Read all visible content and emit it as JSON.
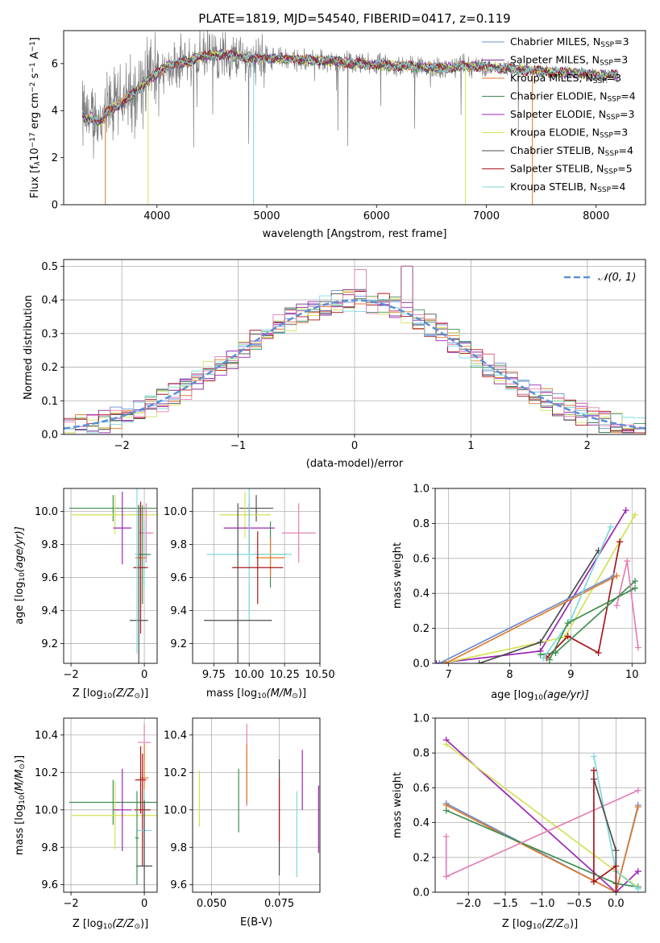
{
  "colors": {
    "miles": {
      "Chabrier": "#6a8fd6",
      "Salpeter": "#7e2f8e",
      "Kroupa": "#e07a2a"
    },
    "elodie": {
      "Chabrier": "#3f8f52",
      "Salpeter": "#9b26b6",
      "Kroupa": "#d4e157"
    },
    "stelib": {
      "Chabrier": "#4d4d4d",
      "Salpeter": "#a8171b",
      "Kroupa": "#7fd9dd"
    },
    "pink": "#e57fb4",
    "grid": "#b0b0b0"
  },
  "chart_data": [
    {
      "type": "line",
      "title": "PLATE=1819, MJD=54540, FIBERID=0417, z=0.119",
      "xlabel": "wavelength [Angstrom, rest frame]",
      "ylabel_parts": [
        "Flux [f",
        "λ",
        "10",
        "−17",
        " erg cm",
        "−2",
        " s",
        "−1",
        " A",
        "−1",
        "]"
      ],
      "xlim": [
        3150,
        8450
      ],
      "ylim": [
        0,
        7.4
      ],
      "xticks": [
        4000,
        5000,
        6000,
        7000,
        8000
      ],
      "yticks": [
        0,
        2,
        4,
        6
      ],
      "legend_position": "top-right",
      "legend": [
        {
          "label": "Chabrier MILES, N",
          "sub": "SSP",
          "suffix": "=3",
          "color": "#6a8fd6"
        },
        {
          "label": "Salpeter MILES, N",
          "sub": "SSP",
          "suffix": "=3",
          "color": "#7e2f8e"
        },
        {
          "label": "Kroupa MILES, N",
          "sub": "SSP",
          "suffix": "=3",
          "color": "#e07a2a"
        },
        {
          "label": "Chabrier ELODIE, N",
          "sub": "SSP",
          "suffix": "=4",
          "color": "#3f8f52"
        },
        {
          "label": "Salpeter ELODIE, N",
          "sub": "SSP",
          "suffix": "=3",
          "color": "#9b26b6"
        },
        {
          "label": "Kroupa ELODIE, N",
          "sub": "SSP",
          "suffix": "=3",
          "color": "#d4e157"
        },
        {
          "label": "Chabrier STELIB, N",
          "sub": "SSP",
          "suffix": "=4",
          "color": "#4d4d4d"
        },
        {
          "label": "Salpeter STELIB, N",
          "sub": "SSP",
          "suffix": "=5",
          "color": "#a8171b"
        },
        {
          "label": "Kroupa STELIB, N",
          "sub": "SSP",
          "suffix": "=4",
          "color": "#7fd9dd"
        }
      ],
      "continuum": [
        [
          3320,
          3.8
        ],
        [
          3360,
          3.6
        ],
        [
          3400,
          3.7
        ],
        [
          3450,
          3.6
        ],
        [
          3500,
          3.55
        ],
        [
          3550,
          4.0
        ],
        [
          3600,
          4.1
        ],
        [
          3700,
          4.4
        ],
        [
          3800,
          4.8
        ],
        [
          3900,
          5.2
        ],
        [
          4000,
          5.6
        ],
        [
          4100,
          5.9
        ],
        [
          4200,
          6.0
        ],
        [
          4300,
          6.1
        ],
        [
          4400,
          6.3
        ],
        [
          4500,
          6.35
        ],
        [
          4600,
          6.4
        ],
        [
          4700,
          6.3
        ],
        [
          4800,
          6.3
        ],
        [
          4900,
          6.2
        ],
        [
          5000,
          6.25
        ],
        [
          5200,
          6.2
        ],
        [
          5400,
          6.15
        ],
        [
          5600,
          6.1
        ],
        [
          5800,
          6.0
        ],
        [
          6000,
          5.95
        ],
        [
          6200,
          5.9
        ],
        [
          6400,
          5.85
        ],
        [
          6600,
          5.8
        ],
        [
          6800,
          5.9
        ],
        [
          7000,
          5.85
        ],
        [
          7200,
          5.8
        ],
        [
          7400,
          5.7
        ],
        [
          7600,
          5.65
        ],
        [
          7800,
          5.6
        ],
        [
          8000,
          5.5
        ],
        [
          8200,
          5.5
        ]
      ]
    },
    {
      "type": "bar",
      "xlabel": "(data-model)/error",
      "ylabel": "Normed distribution",
      "xlim": [
        -2.5,
        2.5
      ],
      "ylim": [
        0,
        0.52
      ],
      "xticks": [
        -2,
        -1,
        0,
        1,
        2
      ],
      "yticks": [
        0.0,
        0.1,
        0.2,
        0.3,
        0.4,
        0.5
      ],
      "legend_position": "top-right",
      "legend": [
        {
          "label": "𝒩(0, 1)",
          "color": "#5b8fd6"
        }
      ],
      "bin_width": 0.1
    },
    {
      "type": "scatter",
      "xlabel_parts": [
        "Z [log",
        "10",
        "(Z/Z",
        "⊙",
        ")]"
      ],
      "ylabel_parts": [
        "age  [log",
        "10",
        "(age/yr)]"
      ],
      "xlim": [
        -2.2,
        0.35
      ],
      "ylim": [
        9.08,
        10.14
      ],
      "xticks": [
        -2,
        0
      ],
      "yticks": [
        9.2,
        9.4,
        9.6,
        9.8,
        10.0
      ],
      "points": [
        {
          "x": -0.85,
          "y": 10.02,
          "xerr": 1.2,
          "yerr": 0.08,
          "color": "#3f8f52"
        },
        {
          "x": -0.8,
          "y": 9.98,
          "xerr": 1.2,
          "yerr": 0.12,
          "color": "#d4e157"
        },
        {
          "x": -0.6,
          "y": 9.9,
          "xerr": 0.25,
          "yerr": 0.22,
          "color": "#9b26b6"
        },
        {
          "x": 0.05,
          "y": 9.87,
          "xerr": 0.2,
          "yerr": 0.18,
          "color": "#e57fb4"
        },
        {
          "x": 0.0,
          "y": 9.74,
          "xerr": 0.2,
          "yerr": 0.2,
          "color": "#7fd9dd"
        },
        {
          "x": -0.05,
          "y": 9.74,
          "xerr": 0.2,
          "yerr": 0.3,
          "color": "#3f8f52"
        },
        {
          "x": -0.1,
          "y": 9.72,
          "xerr": 0.15,
          "yerr": 0.3,
          "color": "#e07a2a"
        },
        {
          "x": -0.1,
          "y": 9.66,
          "xerr": 0.2,
          "yerr": 0.4,
          "color": "#a8171b"
        },
        {
          "x": -0.15,
          "y": 9.34,
          "xerr": 0.25,
          "yerr": 0.7,
          "color": "#4d4d4d"
        },
        {
          "x": -0.2,
          "y": 9.74,
          "xerr": 0.05,
          "yerr": 0.6,
          "color": "#7fd9dd"
        }
      ]
    },
    {
      "type": "scatter",
      "xlabel_parts": [
        "mass [log",
        "10",
        "(M/M",
        "⊙",
        ")]"
      ],
      "ylabel": "",
      "xlim": [
        9.6,
        10.5
      ],
      "ylim": [
        9.08,
        10.14
      ],
      "xticks": [
        9.75,
        10.0,
        10.25,
        10.5
      ],
      "xticklabels": [
        "9.75",
        "10.00",
        "10.25",
        "10.50"
      ],
      "yticks": [
        9.2,
        9.4,
        9.6,
        9.8,
        10.0
      ],
      "points": [
        {
          "x": 10.05,
          "y": 10.02,
          "xerr": 0.12,
          "yerr": 0.08,
          "color": "#4d4d4d"
        },
        {
          "x": 9.97,
          "y": 9.98,
          "xerr": 0.18,
          "yerr": 0.14,
          "color": "#d4e157"
        },
        {
          "x": 10.0,
          "y": 9.9,
          "xerr": 0.18,
          "yerr": 0.15,
          "color": "#9b26b6"
        },
        {
          "x": 10.35,
          "y": 9.87,
          "xerr": 0.12,
          "yerr": 0.18,
          "color": "#e57fb4"
        },
        {
          "x": 10.15,
          "y": 9.74,
          "xerr": 0.12,
          "yerr": 0.2,
          "color": "#3f8f52"
        },
        {
          "x": 10.15,
          "y": 9.72,
          "xerr": 0.1,
          "yerr": 0.12,
          "color": "#e07a2a"
        },
        {
          "x": 10.0,
          "y": 9.74,
          "xerr": 0.3,
          "yerr": 0.4,
          "color": "#7fd9dd"
        },
        {
          "x": 10.06,
          "y": 9.66,
          "xerr": 0.18,
          "yerr": 0.22,
          "color": "#a8171b"
        },
        {
          "x": 9.92,
          "y": 9.34,
          "xerr": 0.24,
          "yerr": 0.71,
          "color": "#4d4d4d"
        }
      ]
    },
    {
      "type": "line",
      "xlabel_parts": [
        "age  [log",
        "10",
        "(age/yr)]"
      ],
      "ylabel": "mass weight",
      "xlim": [
        6.78,
        10.22
      ],
      "ylim": [
        0,
        1.0
      ],
      "xticks": [
        7,
        8,
        9,
        10
      ],
      "yticks": [
        0.0,
        0.2,
        0.4,
        0.6,
        0.8,
        1.0
      ],
      "series": [
        {
          "color": "#9b26b6",
          "points": [
            [
              6.8,
              0.0
            ],
            [
              8.5,
              0.07
            ],
            [
              9.9,
              0.875
            ]
          ]
        },
        {
          "color": "#d4e157",
          "points": [
            [
              6.9,
              0.0
            ],
            [
              8.9,
              0.15
            ],
            [
              10.05,
              0.85
            ]
          ]
        },
        {
          "color": "#4d4d4d",
          "points": [
            [
              7.5,
              0.0
            ],
            [
              8.5,
              0.12
            ],
            [
              9.45,
              0.645
            ]
          ]
        },
        {
          "color": "#a8171b",
          "points": [
            [
              8.6,
              0.03
            ],
            [
              8.95,
              0.155
            ],
            [
              9.45,
              0.06
            ],
            [
              9.8,
              0.695
            ]
          ]
        },
        {
          "color": "#6a8fd6",
          "points": [
            [
              6.85,
              0.0
            ],
            [
              9.7,
              0.5
            ]
          ]
        },
        {
          "color": "#e07a2a",
          "points": [
            [
              6.95,
              0.0
            ],
            [
              9.75,
              0.5
            ]
          ]
        },
        {
          "color": "#3f8f52",
          "points": [
            [
              8.5,
              0.05
            ],
            [
              8.75,
              0.06
            ],
            [
              10.05,
              0.47
            ]
          ]
        },
        {
          "color": "#7fd9dd",
          "points": [
            [
              8.55,
              0.03
            ],
            [
              9.0,
              0.25
            ],
            [
              9.65,
              0.78
            ]
          ]
        },
        {
          "color": "#e57fb4",
          "points": [
            [
              9.75,
              0.33
            ],
            [
              9.92,
              0.585
            ],
            [
              10.1,
              0.09
            ]
          ]
        },
        {
          "color": "#3f8f52",
          "points": [
            [
              8.65,
              0.02
            ],
            [
              8.95,
              0.23
            ],
            [
              10.05,
              0.43
            ]
          ]
        }
      ]
    },
    {
      "type": "scatter",
      "xlabel_parts": [
        "Z [log",
        "10",
        "(Z/Z",
        "⊙",
        ")]"
      ],
      "ylabel_parts": [
        "mass [log",
        "10",
        "(M/M",
        "⊙",
        ")]"
      ],
      "xlim": [
        -2.2,
        0.35
      ],
      "ylim": [
        9.56,
        10.49
      ],
      "xticks": [
        -2,
        0
      ],
      "yticks": [
        9.6,
        9.8,
        10.0,
        10.2,
        10.4
      ],
      "points": [
        {
          "x": -0.85,
          "y": 10.04,
          "xerr": 1.2,
          "yerr": 0.12,
          "color": "#3f8f52"
        },
        {
          "x": -0.8,
          "y": 9.97,
          "xerr": 1.2,
          "yerr": 0.18,
          "color": "#d4e157"
        },
        {
          "x": -0.6,
          "y": 10.0,
          "xerr": 0.25,
          "yerr": 0.22,
          "color": "#9b26b6"
        },
        {
          "x": 0.0,
          "y": 10.36,
          "xerr": 0.18,
          "yerr": 0.1,
          "color": "#e57fb4"
        },
        {
          "x": 0.0,
          "y": 10.17,
          "xerr": 0.12,
          "yerr": 0.18,
          "color": "#e07a2a"
        },
        {
          "x": -0.1,
          "y": 10.16,
          "xerr": 0.15,
          "yerr": 0.18,
          "color": "#a8171b"
        },
        {
          "x": -0.05,
          "y": 10.0,
          "xerr": 0.22,
          "yerr": 0.3,
          "color": "#a8171b"
        },
        {
          "x": 0.0,
          "y": 9.89,
          "xerr": 0.2,
          "yerr": 0.22,
          "color": "#7fd9dd"
        },
        {
          "x": 0.0,
          "y": 9.7,
          "xerr": 0.22,
          "yerr": 0.35,
          "color": "#4d4d4d"
        },
        {
          "x": -0.2,
          "y": 9.85,
          "xerr": 0.05,
          "yerr": 0.25,
          "color": "#3f8f52"
        }
      ]
    },
    {
      "type": "scatter",
      "xlabel": "E(B-V)",
      "ylabel": "",
      "xlim": [
        0.043,
        0.09
      ],
      "ylim": [
        9.56,
        10.49
      ],
      "xticks": [
        0.05,
        0.075
      ],
      "xticklabels": [
        "0.050",
        "0.075"
      ],
      "yticks": [
        9.6,
        9.8,
        10.0,
        10.2,
        10.4
      ],
      "points": [
        {
          "x": 0.0455,
          "y": 10.06,
          "yerr": 0.15,
          "color": "#d4e157"
        },
        {
          "x": 0.06,
          "y": 10.05,
          "yerr": 0.17,
          "color": "#3f8f52"
        },
        {
          "x": 0.063,
          "y": 10.24,
          "yerr": 0.22,
          "color": "#e57fb4"
        },
        {
          "x": 0.063,
          "y": 10.19,
          "yerr": 0.16,
          "color": "#e07a2a"
        },
        {
          "x": 0.075,
          "y": 9.96,
          "yerr": 0.31,
          "color": "#4d4d4d"
        },
        {
          "x": 0.075,
          "y": 10.0,
          "yerr": 0.17,
          "color": "#a8171b"
        },
        {
          "x": 0.0815,
          "y": 9.87,
          "yerr": 0.23,
          "color": "#7fd9dd"
        },
        {
          "x": 0.0835,
          "y": 10.16,
          "yerr": 0.16,
          "color": "#9b26b6"
        },
        {
          "x": 0.0895,
          "y": 9.95,
          "yerr": 0.18,
          "color": "#9b26b6"
        }
      ]
    },
    {
      "type": "line",
      "xlabel_parts": [
        "Z [log",
        "10",
        "(Z/Z",
        "⊙",
        ")]"
      ],
      "ylabel": "mass weight",
      "xlim": [
        -2.45,
        0.4
      ],
      "ylim": [
        0,
        1.0
      ],
      "xticks": [
        -2.0,
        -1.5,
        -1.0,
        -0.5,
        0.0
      ],
      "xticklabels": [
        "−2.0",
        "−1.5",
        "−1.0",
        "−0.5",
        "0.0"
      ],
      "yticks": [
        0.0,
        0.2,
        0.4,
        0.6,
        0.8,
        1.0
      ],
      "series": [
        {
          "color": "#9b26b6",
          "points": [
            [
              -2.3,
              0.875
            ],
            [
              0.0,
              0.0
            ],
            [
              0.3,
              0.12
            ]
          ]
        },
        {
          "color": "#d4e157",
          "points": [
            [
              -2.3,
              0.85
            ],
            [
              0.0,
              0.12
            ],
            [
              0.3,
              0.03
            ]
          ]
        },
        {
          "color": "#6a8fd6",
          "points": [
            [
              -2.3,
              0.51
            ],
            [
              0.0,
              0.0
            ],
            [
              0.3,
              0.5
            ]
          ]
        },
        {
          "color": "#e07a2a",
          "points": [
            [
              -2.3,
              0.5
            ],
            [
              0.0,
              0.0
            ],
            [
              0.3,
              0.49
            ]
          ]
        },
        {
          "color": "#3f8f52",
          "points": [
            [
              -2.3,
              0.47
            ],
            [
              0.0,
              0.05
            ],
            [
              0.3,
              0.03
            ]
          ]
        },
        {
          "color": "#e57fb4",
          "points": [
            [
              -2.3,
              0.32
            ],
            [
              -2.3,
              0.09
            ],
            [
              0.3,
              0.585
            ]
          ]
        },
        {
          "color": "#7fd9dd",
          "points": [
            [
              -0.3,
              0.78
            ],
            [
              0.0,
              0.12
            ],
            [
              0.3,
              0.02
            ]
          ]
        },
        {
          "color": "#4d4d4d",
          "points": [
            [
              -0.3,
              0.65
            ],
            [
              0.0,
              0.24
            ],
            [
              0.0,
              0.0
            ]
          ]
        },
        {
          "color": "#a8171b",
          "points": [
            [
              -0.3,
              0.7
            ],
            [
              -0.3,
              0.06
            ],
            [
              0.0,
              0.15
            ],
            [
              0.0,
              0.0
            ]
          ]
        }
      ]
    }
  ]
}
